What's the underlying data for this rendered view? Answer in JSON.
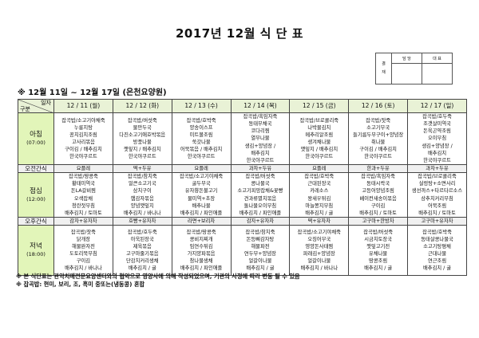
{
  "title": "2017년 12월 식 단 표",
  "approval": {
    "label": "결 재",
    "columns": [
      "담 당",
      "대 표"
    ]
  },
  "range": "※ 12월 11일 ~ 12월 17일 (은천요양원)",
  "corner": {
    "top": "일자",
    "bottom": "구분"
  },
  "days": [
    "12 / 11 (월)",
    "12 / 12 (화)",
    "12 / 13 (수)",
    "12 / 14 (목)",
    "12 / 15 (금)",
    "12 / 16 (토)",
    "12 / 17 (일)"
  ],
  "meals": {
    "breakfast": {
      "label": "아침",
      "time": "(07:00)",
      "cells": [
        [
          "잡곡밥/소고기야채죽",
          "누룽지탕",
          "꽁치김치조림",
          "고사리볶음",
          "구이김 / 배추김치",
          "한국야쿠르트"
        ],
        [
          "잡곡밥/버섯죽",
          "물만두국",
          "다진소고기애호박볶음",
          "방풍나물",
          "깻잎지 / 배추김치",
          "한국야쿠르트"
        ],
        [
          "잡곡밥/호박죽",
          "양송이스프",
          "미트볼조림",
          "쑥갓나물",
          "어묵볶음 / 배추김치",
          "한국야쿠르트"
        ],
        [
          "잡곡밥/흑임자죽",
          "동태무채국",
          "코다리찜",
          "열무나물",
          "생김+양념장 /",
          "배추김치",
          "한국야쿠르트"
        ],
        [
          "잡곡밥/브로콜리죽",
          "나박물김치",
          "메추리알조림",
          "생겨채나물",
          "깻잎지 / 배추김치",
          "한국야쿠르트"
        ],
        [
          "잡곡밥/잣죽",
          "소고기무국",
          "들기름두부구이+양념장",
          "취나물",
          "구이김 / 배추김치",
          "한국야쿠르트"
        ],
        [
          "잡곡밥/호두죽",
          "조갯살미역국",
          "돈육곤약조림",
          "오이무침",
          "생김+양념장 /",
          "배추김치",
          "한국야쿠르트"
        ]
      ]
    },
    "am_snack": {
      "label": "오전간식",
      "cells": [
        "요플레",
        "떡+두유",
        "요플레",
        "과자+두유",
        "요플레",
        "한과+두유",
        "과자+두유"
      ]
    },
    "lunch": {
      "label": "점심",
      "time": "(12:00)",
      "cells": [
        [
          "잡곡밥/땅콩죽",
          "황태미역국",
          "돈LA갈비찜",
          "오색잡채",
          "청란젓무침",
          "배추김치 / 토마토"
        ],
        [
          "잡곡밥/참치죽",
          "얼큰소고기국",
          "삼치구이",
          "햄감자볶음",
          "양념깻잎지",
          "배추김치 / 바나나"
        ],
        [
          "잡곡밥/소고기야채죽",
          "굴두부국",
          "유자향돈불고기",
          "물미역+초장",
          "배추나물",
          "배추김치 / 파인애플"
        ],
        [
          "잡곡밥/버섯죽",
          "콩나물국",
          "소고기피망잡채&꽃빵",
          "견과류멸치볶음",
          "돌나물오이무침",
          "배추김치 / 파인애플"
        ],
        [
          "잡곡밥/호박죽",
          "근대된장국",
          "카레소스",
          "왕새우튀김",
          "마늘쫑지무침",
          "배추김치 / 귤"
        ],
        [
          "잡곡밥/흑임자죽",
          "동태시락국",
          "고등어양념조림",
          "베이컨새송이볶음",
          "구이김",
          "배추김치 / 토마토"
        ],
        [
          "잡곡밥/브로콜리죽",
          "설렁탕+소면사리",
          "생선까스+타르타르소스",
          "상추치커리무침",
          "어묵조림",
          "배추김치 / 토마토"
        ]
      ]
    },
    "pm_snack": {
      "label": "오후간식",
      "cells": [
        "감자+유자차",
        "호빵+유자차",
        "라면+보리차",
        "감자+유자차",
        "떡+유자차",
        "고구마+한방차",
        "고구마+유자차"
      ]
    },
    "dinner": {
      "label": "저녁",
      "time": "(18:00)",
      "cells": [
        [
          "잡곡밥/잣죽",
          "닭개장",
          "해물완자전",
          "도토리묵무침",
          "구이김",
          "배추김치 / 바나나"
        ],
        [
          "잡곡밥/호두죽",
          "아욱된장국",
          "제육볶음",
          "고구마줄기볶음",
          "단감치커리생채",
          "배추김치 / 귤"
        ],
        [
          "잡곡밥/땅콩죽",
          "콩비지찌개",
          "임연수튀김",
          "가지양파볶음",
          "참나물생채",
          "배추김치 / 파인애플"
        ],
        [
          "잡곡밥/참치죽",
          "돈등뼈감자탕",
          "해물파전",
          "연두부+양념장",
          "얼갈이나물",
          "배추김치 / 귤"
        ],
        [
          "잡곡밥/소고기야채죽",
          "오징어무국",
          "영양돈사태찜",
          "파래김+양념장",
          "얼갈이나물",
          "배추김치 / 바나나"
        ],
        [
          "잡곡밥/버섯죽",
          "시금치토장국",
          "깻잎고기전",
          "유채나물",
          "땅콩조림",
          "배추김치 / 귤"
        ],
        [
          "잡곡밥/호박죽",
          "동태살콩나물국",
          "소고기탕평채",
          "근대나물",
          "연근조림",
          "배추김치 / 귤"
        ]
      ]
    }
  },
  "notes": [
    "※ 본 식단표는 관악치매전문요양센터와의 협약으로 영양사에 의해 작성되었으며, 기관의 사정에 따라 변동 될 수 있음",
    "※ 잡곡밥: 현미, 보리, 조, 흑미 중또는(냉동콩) 혼합"
  ],
  "colors": {
    "header_bg": "#e9f2d6",
    "label_bg": "#e2f5b9",
    "snack_bg": "#f0f0f0"
  }
}
